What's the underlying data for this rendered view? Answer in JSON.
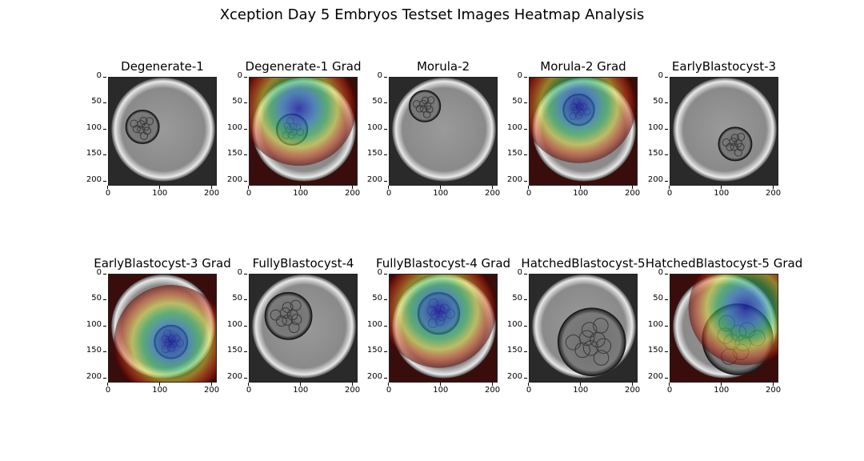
{
  "figure_title": "Xception Day 5 Embryos Testset Images Heatmap Analysis",
  "chart_data": {
    "type": "image_grid",
    "title": "Xception Day 5 Embryos Testset Images Heatmap Analysis",
    "x_ticks": [
      0,
      100,
      200
    ],
    "y_ticks": [
      0,
      50,
      100,
      150,
      200
    ],
    "xlim": [
      0,
      210
    ],
    "ylim": [
      210,
      0
    ],
    "panels": [
      {
        "title": "Degenerate-1",
        "kind": "image",
        "embryo": [
          65,
          95,
          32
        ]
      },
      {
        "title": "Degenerate-1 Grad",
        "kind": "grad",
        "embryo": [
          82,
          100,
          30
        ],
        "hot": [
          95,
          60
        ]
      },
      {
        "title": "Morula-2",
        "kind": "image",
        "embryo": [
          68,
          55,
          30
        ]
      },
      {
        "title": "Morula-2 Grad",
        "kind": "grad",
        "embryo": [
          95,
          62,
          30
        ],
        "hot": [
          95,
          55
        ]
      },
      {
        "title": "EarlyBlastocyst-3",
        "kind": "image",
        "embryo": [
          125,
          128,
          32
        ]
      },
      {
        "title": "EarlyBlastocyst-3 Grad",
        "kind": "grad",
        "embryo": [
          120,
          130,
          32
        ],
        "hot": [
          120,
          130
        ]
      },
      {
        "title": "FullyBlastocyst-4",
        "kind": "image",
        "embryo": [
          75,
          80,
          45
        ]
      },
      {
        "title": "FullyBlastocyst-4 Grad",
        "kind": "grad",
        "embryo": [
          95,
          75,
          40
        ],
        "hot": [
          95,
          70
        ]
      },
      {
        "title": "HatchedBlastocyst-5",
        "kind": "image",
        "embryo": [
          120,
          130,
          65
        ]
      },
      {
        "title": "HatchedBlastocyst-5 Grad",
        "kind": "grad",
        "embryo": [
          130,
          125,
          68
        ],
        "hot": [
          145,
          65
        ]
      }
    ]
  }
}
